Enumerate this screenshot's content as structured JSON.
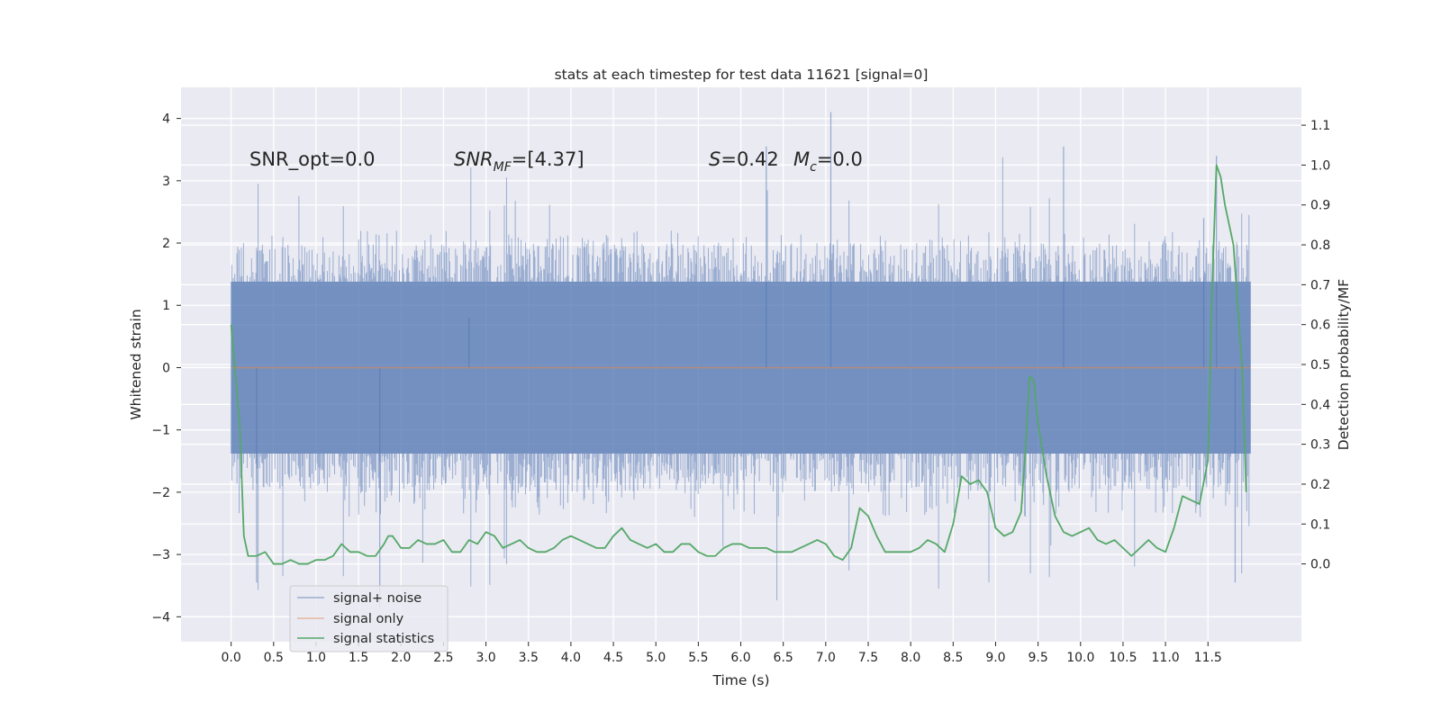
{
  "chart_data": {
    "type": "line",
    "title": "stats at each timestep for test data 11621 [signal=0]",
    "xlabel": "Time (s)",
    "ylabel": "Whitened strain",
    "ylabel_right": "Detection probability/MF",
    "xlim": [
      -0.59,
      12.6
    ],
    "ylim": [
      -4.4,
      4.5
    ],
    "ylim_right": [
      -0.195,
      1.195
    ],
    "x_ticks": [
      "0.0",
      "0.5",
      "1.0",
      "1.5",
      "2.0",
      "2.5",
      "3.0",
      "3.5",
      "4.0",
      "4.5",
      "5.0",
      "5.5",
      "6.0",
      "6.5",
      "7.0",
      "7.5",
      "8.0",
      "8.5",
      "9.0",
      "9.5",
      "10.0",
      "10.5",
      "11.0",
      "11.5"
    ],
    "y_ticks_left": [
      "−4",
      "−3",
      "−2",
      "−1",
      "0",
      "1",
      "2",
      "3",
      "4"
    ],
    "y_ticks_right": [
      "0.0",
      "0.1",
      "0.2",
      "0.3",
      "0.4",
      "0.5",
      "0.6",
      "0.7",
      "0.8",
      "0.9",
      "1.0",
      "1.1"
    ],
    "grid": true,
    "legend_position": "lower-left",
    "annotations": {
      "snr_opt": "SNR_opt=0.0",
      "snr_mf_main": "SNR",
      "snr_mf_sub": "MF",
      "snr_mf_value": "=[4.37]",
      "s_symbol": "S",
      "s_value": "=0.42",
      "mc_symbol": "M",
      "mc_sub": "c",
      "mc_value": "=0.0"
    },
    "series": [
      {
        "name": "signal+ noise",
        "color": "#4c72b0",
        "axis": "left",
        "description": "whitened noise, roughly symmetric, bulk within ±1.4, spikes to about ±3.5",
        "x_range": [
          0.0,
          12.0
        ],
        "envelope": {
          "core": 1.38,
          "min": -3.85,
          "max": 4.1
        }
      },
      {
        "name": "signal only",
        "color": "#dd8452",
        "axis": "left",
        "x": [
          0.0,
          12.0
        ],
        "y": [
          0.0,
          0.0
        ]
      },
      {
        "name": "signal statistics",
        "color": "#55a868",
        "axis": "right",
        "x": [
          0.0,
          0.1,
          0.15,
          0.2,
          0.3,
          0.4,
          0.5,
          0.6,
          0.7,
          0.8,
          0.9,
          1.0,
          1.1,
          1.2,
          1.3,
          1.4,
          1.5,
          1.6,
          1.7,
          1.8,
          1.85,
          1.9,
          2.0,
          2.1,
          2.2,
          2.3,
          2.4,
          2.5,
          2.6,
          2.7,
          2.8,
          2.9,
          3.0,
          3.1,
          3.2,
          3.3,
          3.4,
          3.5,
          3.6,
          3.7,
          3.8,
          3.9,
          4.0,
          4.1,
          4.2,
          4.3,
          4.4,
          4.5,
          4.6,
          4.7,
          4.8,
          4.9,
          5.0,
          5.1,
          5.2,
          5.3,
          5.4,
          5.5,
          5.6,
          5.7,
          5.8,
          5.9,
          6.0,
          6.1,
          6.2,
          6.3,
          6.4,
          6.5,
          6.6,
          6.7,
          6.8,
          6.9,
          7.0,
          7.1,
          7.2,
          7.3,
          7.4,
          7.5,
          7.6,
          7.7,
          7.8,
          7.9,
          8.0,
          8.1,
          8.2,
          8.3,
          8.4,
          8.5,
          8.6,
          8.7,
          8.8,
          8.9,
          9.0,
          9.1,
          9.2,
          9.3,
          9.35,
          9.4,
          9.45,
          9.5,
          9.6,
          9.7,
          9.8,
          9.9,
          10.0,
          10.1,
          10.2,
          10.3,
          10.4,
          10.5,
          10.6,
          10.7,
          10.8,
          10.9,
          11.0,
          11.1,
          11.2,
          11.3,
          11.4,
          11.5,
          11.55,
          11.6,
          11.65,
          11.7,
          11.8,
          11.9,
          11.95
        ],
        "y": [
          0.6,
          0.35,
          0.07,
          0.02,
          0.02,
          0.03,
          0.0,
          0.0,
          0.01,
          0.0,
          0.0,
          0.01,
          0.01,
          0.02,
          0.05,
          0.03,
          0.03,
          0.02,
          0.02,
          0.05,
          0.07,
          0.07,
          0.04,
          0.04,
          0.06,
          0.05,
          0.05,
          0.06,
          0.03,
          0.03,
          0.06,
          0.05,
          0.08,
          0.07,
          0.04,
          0.05,
          0.06,
          0.04,
          0.03,
          0.03,
          0.04,
          0.06,
          0.07,
          0.06,
          0.05,
          0.04,
          0.04,
          0.07,
          0.09,
          0.06,
          0.05,
          0.04,
          0.05,
          0.03,
          0.03,
          0.05,
          0.05,
          0.03,
          0.02,
          0.02,
          0.04,
          0.05,
          0.05,
          0.04,
          0.04,
          0.04,
          0.03,
          0.03,
          0.03,
          0.04,
          0.05,
          0.06,
          0.05,
          0.02,
          0.01,
          0.04,
          0.14,
          0.12,
          0.07,
          0.03,
          0.03,
          0.03,
          0.03,
          0.04,
          0.06,
          0.05,
          0.03,
          0.1,
          0.22,
          0.2,
          0.21,
          0.18,
          0.09,
          0.07,
          0.08,
          0.13,
          0.28,
          0.47,
          0.46,
          0.35,
          0.22,
          0.12,
          0.08,
          0.07,
          0.08,
          0.09,
          0.06,
          0.05,
          0.06,
          0.04,
          0.02,
          0.04,
          0.06,
          0.04,
          0.03,
          0.09,
          0.17,
          0.16,
          0.15,
          0.26,
          0.7,
          1.0,
          0.97,
          0.9,
          0.8,
          0.5,
          0.18
        ]
      }
    ]
  }
}
